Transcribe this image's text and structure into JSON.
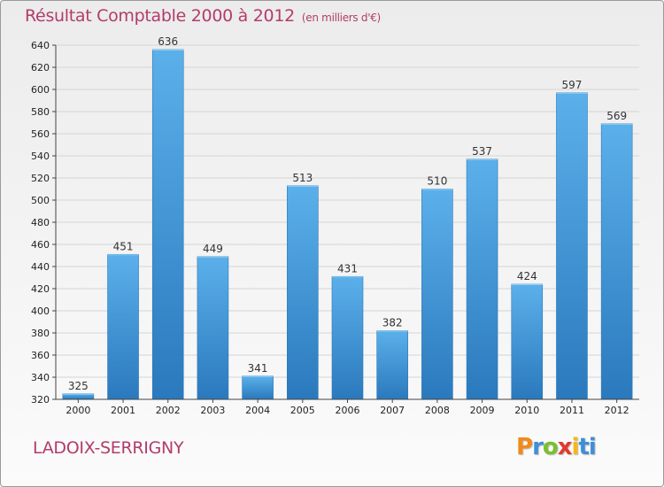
{
  "title": "Résultat Comptable 2000 à 2012",
  "subtitle": "(en milliers d'€)",
  "commune": "LADOIX-SERRIGNY",
  "logo": [
    "P",
    "r",
    "o",
    "x",
    "i",
    "ti"
  ],
  "colors": {
    "title": "#b23c6a",
    "bar_top": "#5bb0ea",
    "bar_bottom": "#2a79bd",
    "grid": "#d5d5d5",
    "axis_text": "#222222"
  },
  "chart_data": {
    "type": "bar",
    "title": "Résultat Comptable 2000 à 2012",
    "xlabel": "",
    "ylabel": "",
    "categories": [
      "2000",
      "2001",
      "2002",
      "2003",
      "2004",
      "2005",
      "2006",
      "2007",
      "2008",
      "2009",
      "2010",
      "2011",
      "2012"
    ],
    "values": [
      325,
      451,
      636,
      449,
      341,
      513,
      431,
      382,
      510,
      537,
      424,
      597,
      569
    ],
    "ylim": [
      320,
      640
    ],
    "yticks": [
      320,
      340,
      360,
      380,
      400,
      420,
      440,
      460,
      480,
      500,
      520,
      540,
      560,
      580,
      600,
      620,
      640
    ],
    "grid": true
  }
}
